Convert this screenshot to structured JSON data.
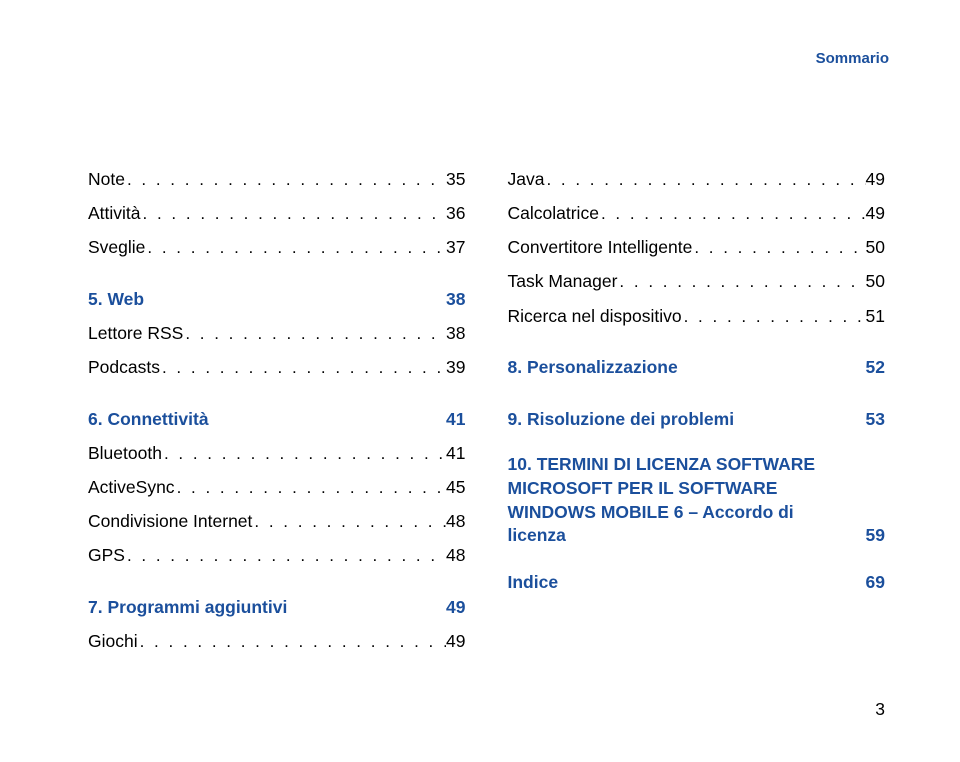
{
  "header": {
    "title": "Sommario"
  },
  "colors": {
    "accent": "#1b4f9c",
    "text": "#000000",
    "background": "#ffffff"
  },
  "left": [
    {
      "kind": "item",
      "label": "Note",
      "page": "35"
    },
    {
      "kind": "item",
      "label": "Attività",
      "page": "36"
    },
    {
      "kind": "item",
      "label": "Sveglie",
      "page": "37"
    },
    {
      "kind": "section",
      "label": "5. Web",
      "page": "38",
      "gap_before": true
    },
    {
      "kind": "item",
      "label": "Lettore RSS",
      "page": "38"
    },
    {
      "kind": "item",
      "label": "Podcasts",
      "page": "39"
    },
    {
      "kind": "section",
      "label": "6. Connettività",
      "page": "41",
      "gap_before": true
    },
    {
      "kind": "item",
      "label": "Bluetooth",
      "page": "41"
    },
    {
      "kind": "item",
      "label": "ActiveSync",
      "page": "45"
    },
    {
      "kind": "item",
      "label": "Condivisione Internet",
      "page": "48"
    },
    {
      "kind": "item",
      "label": "GPS",
      "page": "48"
    },
    {
      "kind": "section",
      "label": "7. Programmi aggiuntivi",
      "page": "49",
      "gap_before": true
    },
    {
      "kind": "item",
      "label": "Giochi",
      "page": "49"
    }
  ],
  "right": [
    {
      "kind": "item",
      "label": "Java",
      "page": "49"
    },
    {
      "kind": "item",
      "label": "Calcolatrice",
      "page": "49"
    },
    {
      "kind": "item",
      "label": "Convertitore Intelligente",
      "page": "50"
    },
    {
      "kind": "item",
      "label": "Task Manager",
      "page": "50"
    },
    {
      "kind": "item",
      "label": "Ricerca nel dispositivo",
      "page": "51"
    },
    {
      "kind": "section",
      "label": "8. Personalizzazione",
      "page": "52",
      "gap_before": true
    },
    {
      "kind": "section",
      "label": "9. Risoluzione dei problemi",
      "page": "53",
      "gap_before": true
    },
    {
      "kind": "section",
      "label": "10. TERMINI DI LICENZA SOFTWARE MICROSOFT PER IL SOFTWARE WINDOWS MOBILE 6 – Accordo di licenza",
      "page": "59",
      "gap_before": true,
      "multiline": true
    },
    {
      "kind": "section",
      "label": "Indice",
      "page": "69",
      "gap_before": true
    }
  ],
  "page_number": "3",
  "dot_fill": ". . . . . . . . . . . . . . . . . . . . . . . . . . . . . . . . . . . . . . . ."
}
